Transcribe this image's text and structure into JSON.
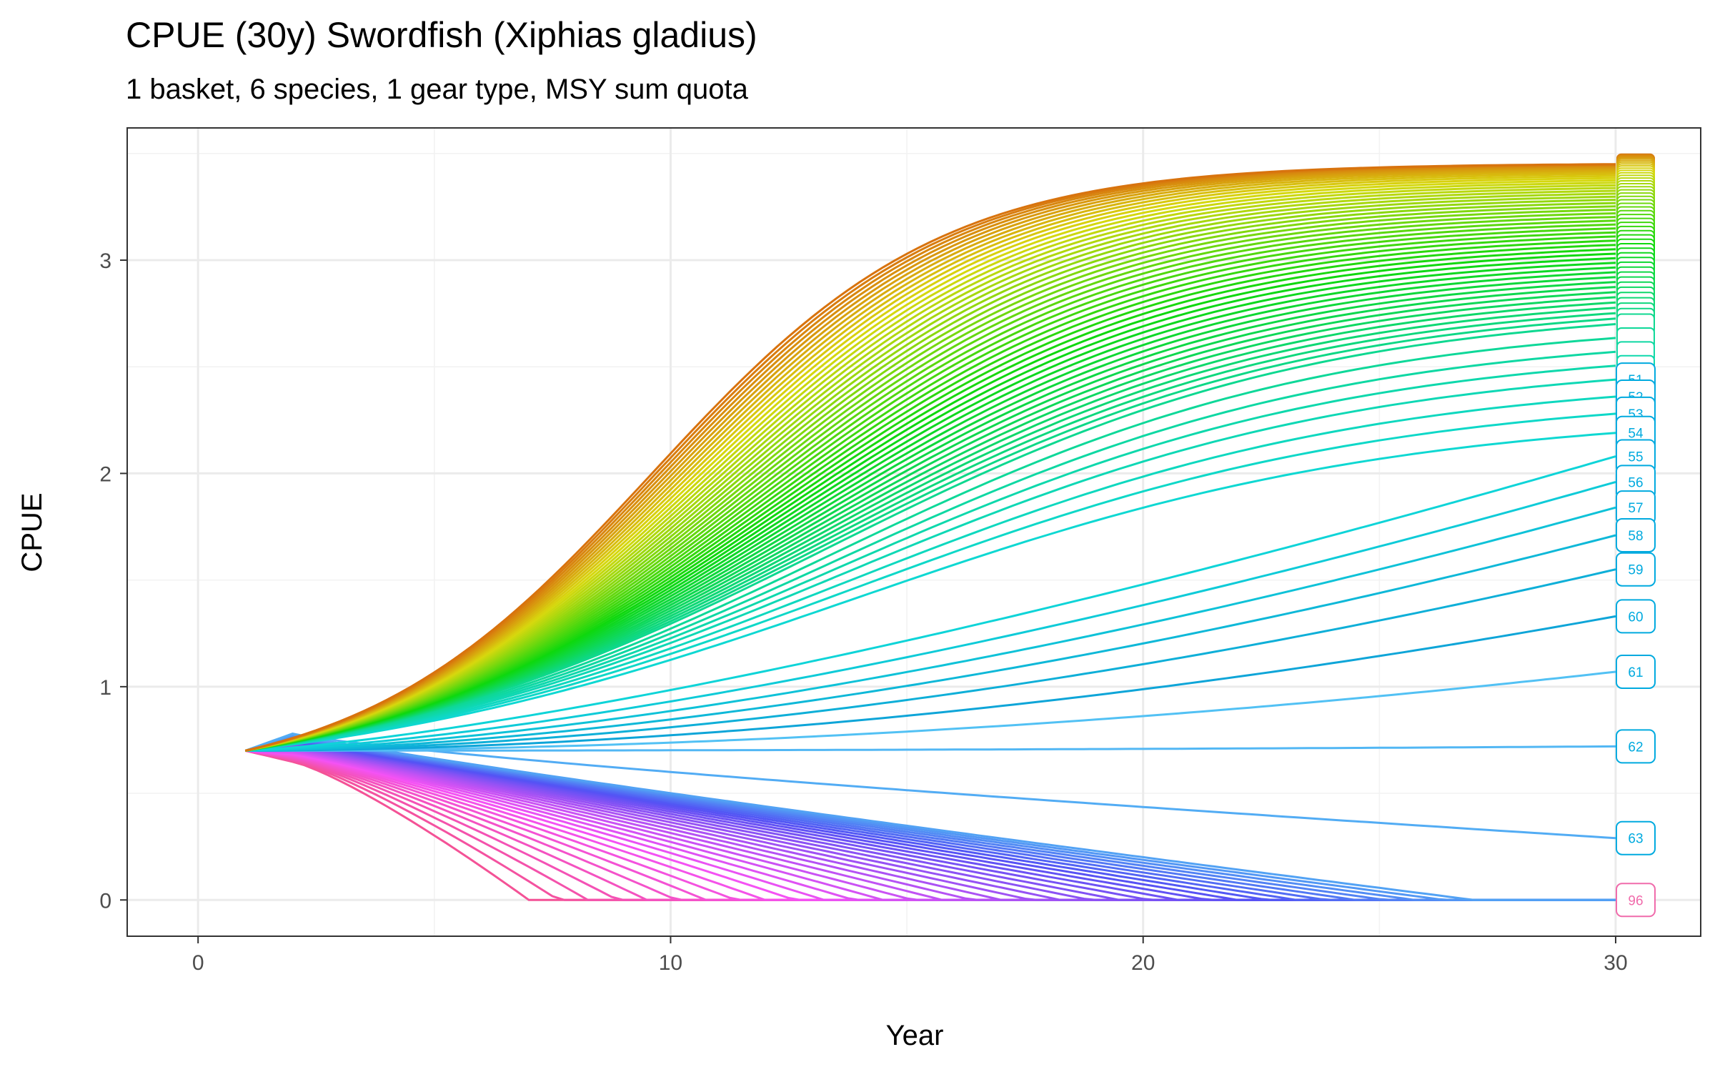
{
  "chart_data": {
    "type": "line",
    "title": "CPUE (30y) Swordfish (Xiphias gladius)",
    "subtitle": "1 basket, 6 species, 1 gear type, MSY sum quota",
    "xlabel": "Year",
    "ylabel": "CPUE",
    "xlim": [
      -1.5,
      31.8
    ],
    "ylim": [
      -0.17,
      3.62
    ],
    "x_ticks": [
      0,
      10,
      20,
      30
    ],
    "y_ticks": [
      0,
      1,
      2,
      3
    ],
    "grid": true,
    "legend": "none (end-of-line labels)",
    "x_start": 1,
    "x_end": 30,
    "start_value": 0.7,
    "series_count": 96,
    "colors": {
      "background": "#ffffff",
      "grid_major": "#ebebeb",
      "grid_minor": "#f2f2f2",
      "panel_border": "#333333",
      "hue_start": "#f8766d",
      "hue_cyan": "#00b0f6",
      "hue_pink": "#ff64b0"
    },
    "series": [
      {
        "name": "51",
        "final_value": 2.44
      },
      {
        "name": "52",
        "final_value": 2.36
      },
      {
        "name": "53",
        "final_value": 2.28
      },
      {
        "name": "54",
        "final_value": 2.19
      },
      {
        "name": "55",
        "final_value": 2.08
      },
      {
        "name": "56",
        "final_value": 1.96
      },
      {
        "name": "57",
        "final_value": 1.84
      },
      {
        "name": "58",
        "final_value": 1.71
      },
      {
        "name": "59",
        "final_value": 1.55
      },
      {
        "name": "60",
        "final_value": 1.33
      },
      {
        "name": "61",
        "final_value": 1.07
      },
      {
        "name": "62",
        "final_value": 0.72
      },
      {
        "name": "63",
        "final_value": 0.29
      },
      {
        "name": "96",
        "final_value": 0.0
      }
    ]
  }
}
